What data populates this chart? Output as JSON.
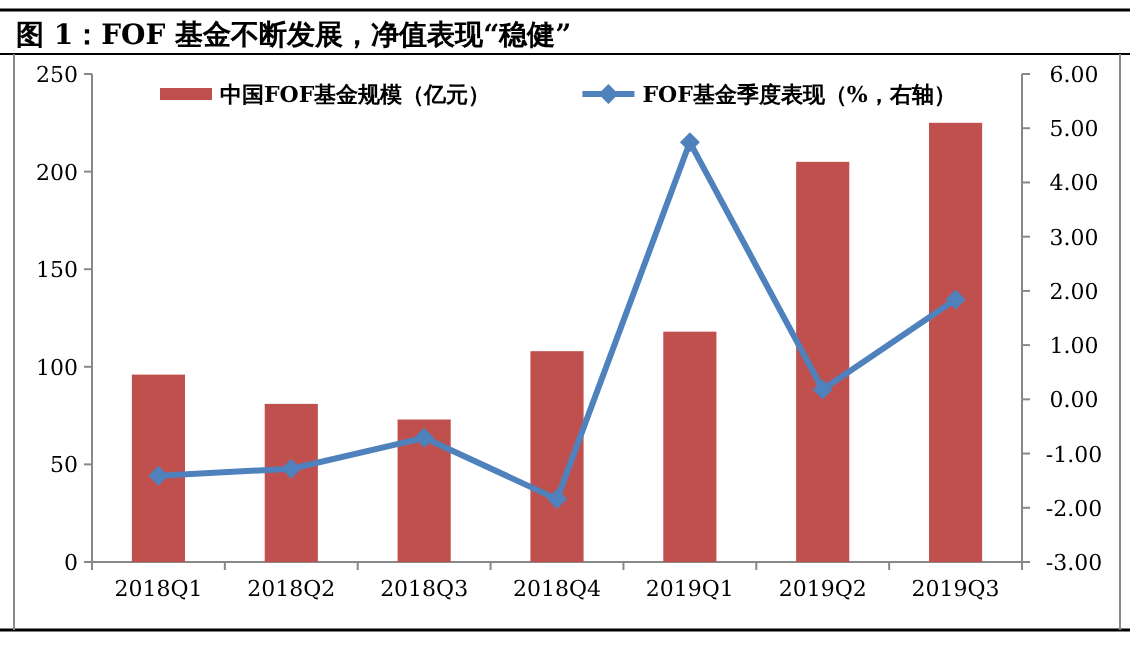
{
  "chart_data": {
    "type": "bar",
    "title": "图 1：FOF 基金不断发展，净值表现“稳健”",
    "categories": [
      "2018Q1",
      "2018Q2",
      "2018Q3",
      "2018Q4",
      "2019Q1",
      "2019Q2",
      "2019Q3"
    ],
    "series": [
      {
        "name": "中国FOF基金规模（亿元）",
        "color": "#c0504d",
        "values": [
          96,
          81,
          73,
          108,
          118,
          205,
          225
        ]
      },
      {
        "name": "FOF基金季度表现（%，右轴）",
        "type": "line",
        "axis": "y2",
        "color": "#4f81bd",
        "marker": "diamond",
        "values": [
          -1.41,
          -1.28,
          -0.71,
          -1.84,
          4.74,
          0.18,
          1.84
        ]
      }
    ],
    "ylim": [
      0,
      250
    ],
    "yticks": [
      0,
      50,
      100,
      150,
      200,
      250
    ],
    "y2lim": [
      -3,
      6
    ],
    "y2ticks": [
      {
        "value": -3,
        "label": "-3.00"
      },
      {
        "value": -2,
        "label": "-2.00"
      },
      {
        "value": -1,
        "label": "-1.00"
      },
      {
        "value": 0,
        "label": "0.00"
      },
      {
        "value": 1,
        "label": "1.00"
      },
      {
        "value": 2,
        "label": "2.00"
      },
      {
        "value": 3,
        "label": "3.00"
      },
      {
        "value": 4,
        "label": "4.00"
      },
      {
        "value": 5,
        "label": "5.00"
      },
      {
        "value": 6,
        "label": "6.00"
      }
    ],
    "grid": false,
    "legend": "top"
  }
}
